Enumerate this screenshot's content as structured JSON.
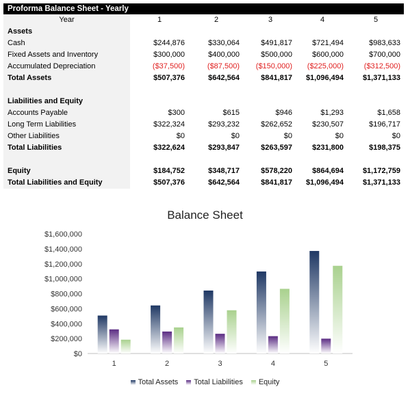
{
  "sheet": {
    "title": "Proforma Balance Sheet - Yearly",
    "header": {
      "label": "Year",
      "years": [
        "1",
        "2",
        "3",
        "4",
        "5"
      ]
    },
    "rows": [
      {
        "label": "Assets",
        "values": [
          "",
          "",
          "",
          "",
          ""
        ],
        "bold": true
      },
      {
        "label": "Cash",
        "values": [
          "$244,876",
          "$330,064",
          "$491,817",
          "$721,494",
          "$983,633"
        ]
      },
      {
        "label": "Fixed Assets and Inventory",
        "values": [
          "$300,000",
          "$400,000",
          "$500,000",
          "$600,000",
          "$700,000"
        ]
      },
      {
        "label": "Accumulated Depreciation",
        "values": [
          "($37,500)",
          "($87,500)",
          "($150,000)",
          "($225,000)",
          "($312,500)"
        ],
        "negative": true
      },
      {
        "label": "Total Assets",
        "values": [
          "$507,376",
          "$642,564",
          "$841,817",
          "$1,096,494",
          "$1,371,133"
        ],
        "bold": true
      },
      {
        "label": "",
        "values": [
          "",
          "",
          "",
          "",
          ""
        ]
      },
      {
        "label": "Liabilities and Equity",
        "values": [
          "",
          "",
          "",
          "",
          ""
        ],
        "bold": true
      },
      {
        "label": "Accounts Payable",
        "values": [
          "$300",
          "$615",
          "$946",
          "$1,293",
          "$1,658"
        ]
      },
      {
        "label": "Long Term Liabilities",
        "values": [
          "$322,324",
          "$293,232",
          "$262,652",
          "$230,507",
          "$196,717"
        ]
      },
      {
        "label": "Other Liabilities",
        "values": [
          "$0",
          "$0",
          "$0",
          "$0",
          "$0"
        ]
      },
      {
        "label": "Total Liabilities",
        "values": [
          "$322,624",
          "$293,847",
          "$263,597",
          "$231,800",
          "$198,375"
        ],
        "bold": true
      },
      {
        "label": "",
        "values": [
          "",
          "",
          "",
          "",
          ""
        ]
      },
      {
        "label": "Equity",
        "values": [
          "$184,752",
          "$348,717",
          "$578,220",
          "$864,694",
          "$1,172,759"
        ],
        "bold": true
      },
      {
        "label": "Total Liabilities and Equity",
        "values": [
          "$507,376",
          "$642,564",
          "$841,817",
          "$1,096,494",
          "$1,371,133"
        ],
        "bold": true
      }
    ]
  },
  "chart_data": {
    "type": "bar",
    "title": "Balance Sheet",
    "categories": [
      "1",
      "2",
      "3",
      "4",
      "5"
    ],
    "series": [
      {
        "name": "Total Assets",
        "values": [
          507376,
          642564,
          841817,
          1096494,
          1371133
        ],
        "color": "#1f3864"
      },
      {
        "name": "Total Liabilities",
        "values": [
          322624,
          293847,
          263597,
          231800,
          198375
        ],
        "color": "#5b2c83"
      },
      {
        "name": "Equity",
        "values": [
          184752,
          348717,
          578220,
          864694,
          1172759
        ],
        "color": "#a9d18e"
      }
    ],
    "ylim": [
      0,
      1600000
    ],
    "yticks": [
      "$0",
      "$200,000",
      "$400,000",
      "$600,000",
      "$800,000",
      "$1,000,000",
      "$1,200,000",
      "$1,400,000",
      "$1,600,000"
    ],
    "grid": false,
    "legend": "bottom",
    "fill": "gradient fading to white at base"
  }
}
